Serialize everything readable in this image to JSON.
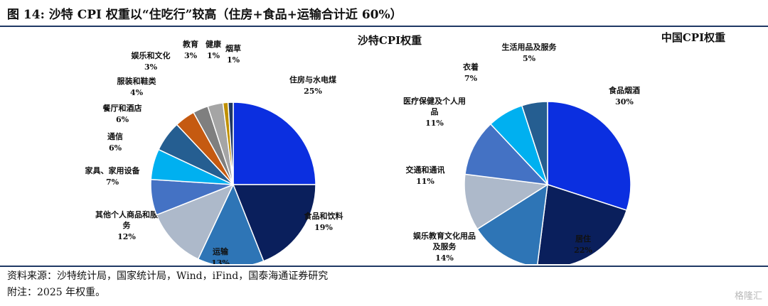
{
  "title": "图 14: 沙特 CPI 权重以“住吃行”较高（住房+食品+运输合计近 60%）",
  "source": "资料来源：沙特统计局，国家统计局，Wind，iFind，国泰海通证券研究",
  "note": "附注：2025 年权重。",
  "watermark": "格隆汇",
  "chart_data": [
    {
      "type": "pie",
      "title": "沙特CPI权重",
      "unit": "%",
      "categories": [
        "住房与水电煤",
        "食品和饮料",
        "运输",
        "其他个人商品和服务",
        "家具、家用设备",
        "通信",
        "餐厅和酒店",
        "服装和鞋类",
        "娱乐和文化",
        "教育",
        "健康",
        "烟草"
      ],
      "values": [
        25,
        19,
        13,
        12,
        7,
        6,
        6,
        4,
        3,
        3,
        1,
        1
      ],
      "colors": [
        "#0b2fe0",
        "#0a1f5c",
        "#2e75b6",
        "#adb9ca",
        "#4472c4",
        "#00b0f0",
        "#255e91",
        "#c55a11",
        "#7f7f7f",
        "#a5a5a5",
        "#bf9000",
        "#1f3864",
        "#ffffff"
      ],
      "value_sum": 100
    },
    {
      "type": "pie",
      "title": "中国CPI权重",
      "unit": "%",
      "categories": [
        "食品烟酒",
        "居住",
        "娱乐教育文化用品及服务",
        "交通和通讯",
        "医疗保健及个人用品",
        "衣着",
        "生活用品及服务"
      ],
      "values": [
        30,
        22,
        14,
        11,
        11,
        7,
        5
      ],
      "colors": [
        "#0b2fe0",
        "#0a1f5c",
        "#2e75b6",
        "#adb9ca",
        "#4472c4",
        "#00b0f0",
        "#255e91"
      ]
    }
  ]
}
